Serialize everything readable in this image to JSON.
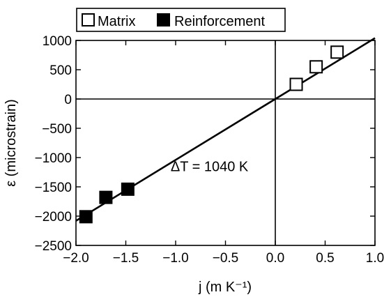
{
  "chart_data": {
    "type": "scatter",
    "xlabel": "j (m K⁻¹)",
    "ylabel": "ε (microstrain)",
    "xlim": [
      -2.0,
      1.0
    ],
    "ylim": [
      -2500,
      1000
    ],
    "x_ticks": [
      -2.0,
      -1.5,
      -1.0,
      -0.5,
      0.0,
      0.5,
      1.0
    ],
    "x_tick_labels": [
      "−2.0",
      "−1.5",
      "−1.0",
      "−0.5",
      "0.0",
      "0.5",
      "1.0"
    ],
    "y_ticks": [
      1000,
      500,
      0,
      -500,
      -1000,
      -1500,
      -2000,
      -2500
    ],
    "y_tick_labels": [
      "1000",
      "500",
      "0",
      "−500",
      "−1000",
      "−1500",
      "−2000",
      "−2500"
    ],
    "reference_lines": {
      "x": 0,
      "y": 0
    },
    "grid": false,
    "legend": {
      "placement": "top",
      "entries": [
        "Matrix",
        "Reinforcement"
      ]
    },
    "series": [
      {
        "name": "Matrix",
        "marker": "open-square",
        "x": [
          0.21,
          0.41,
          0.62
        ],
        "y": [
          250,
          550,
          800
        ]
      },
      {
        "name": "Reinforcement",
        "marker": "filled-square",
        "x": [
          -1.9,
          -1.7,
          -1.48
        ],
        "y": [
          -2010,
          -1680,
          -1540
        ]
      }
    ],
    "fit_line": {
      "x": [
        -2.0,
        1.0
      ],
      "y": [
        -2080,
        1040
      ]
    },
    "annotation": {
      "text": "ΔT = 1040 K",
      "x": -1.05,
      "y": -1230
    }
  }
}
